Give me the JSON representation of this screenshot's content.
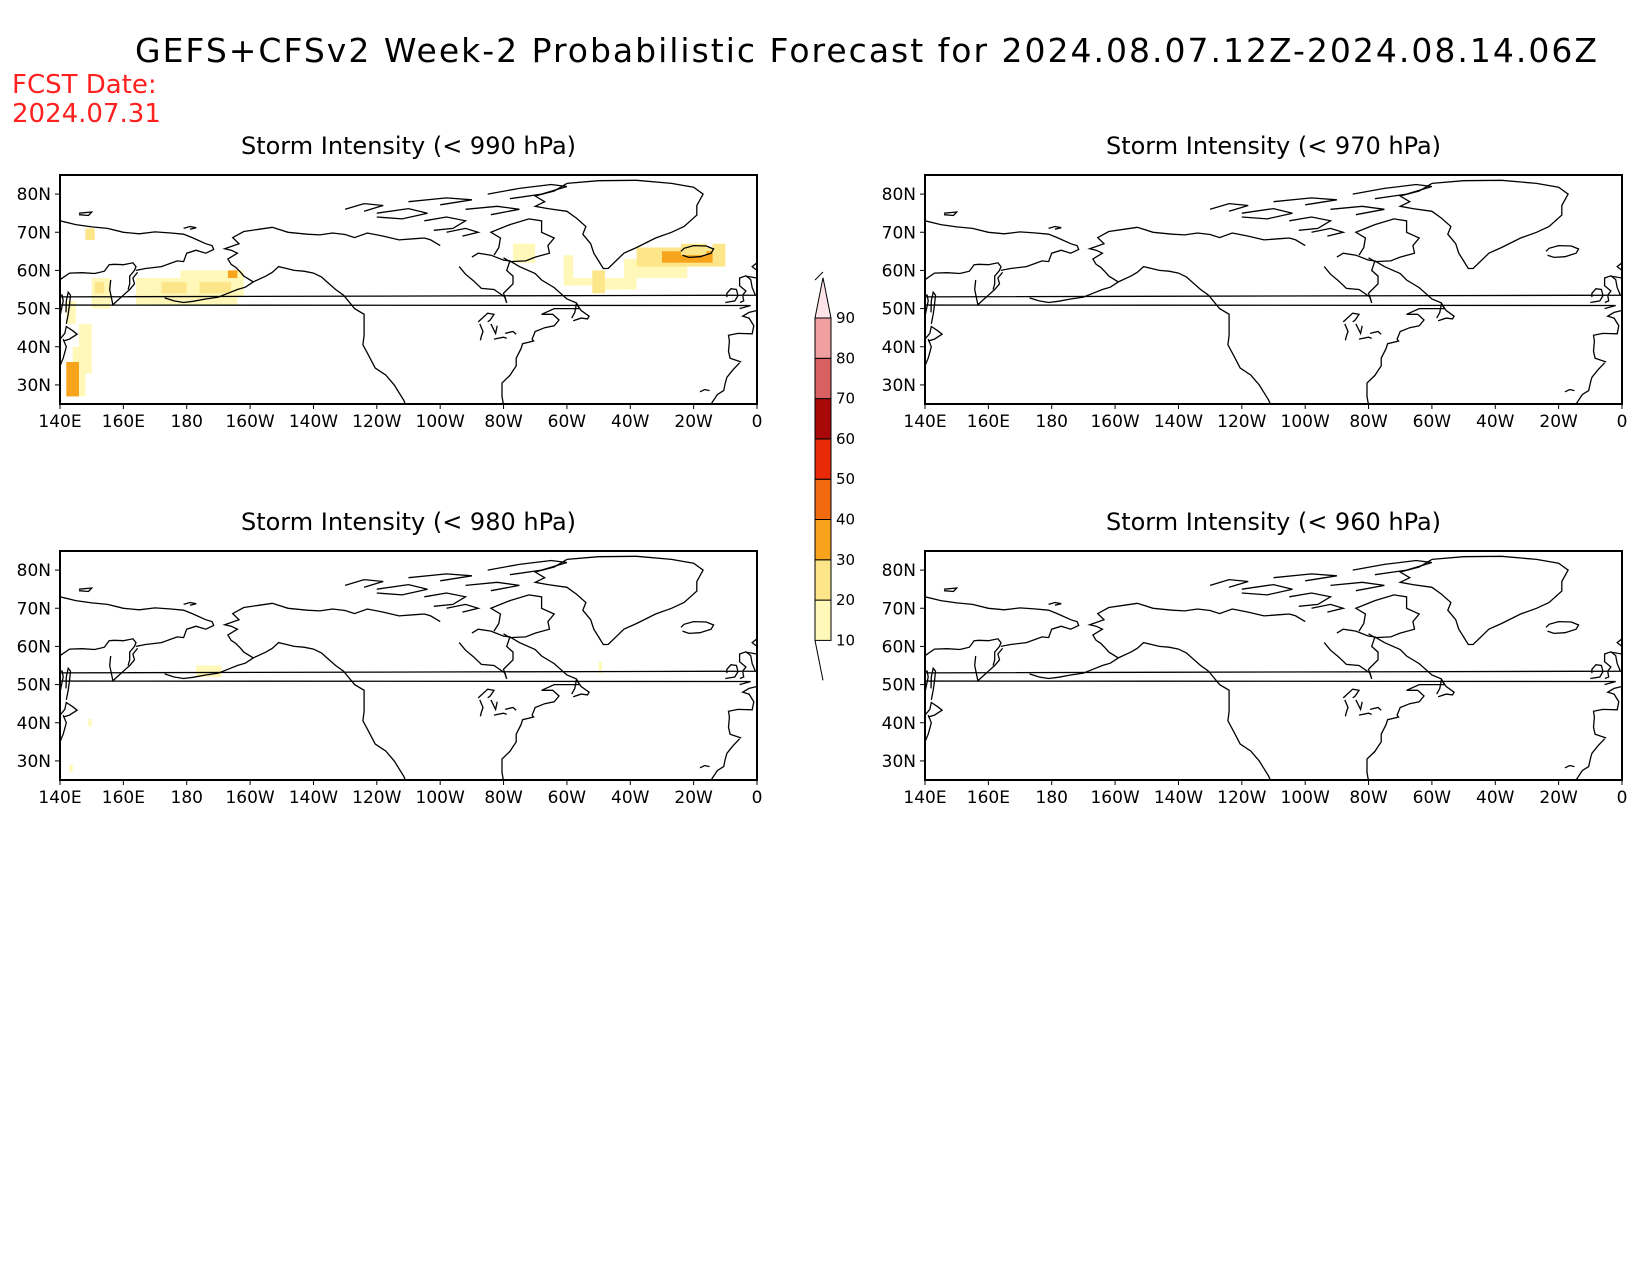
{
  "title": "GEFS+CFSv2 Week-2 Probabilistic Forecast for 2024.08.07.12Z-2024.08.14.06Z",
  "fcst_label": "FCST Date:",
  "fcst_date": "2024.07.31",
  "colors": {
    "fcst_text": "#ff2020",
    "frame": "#000000",
    "coast": "#000000"
  },
  "lon_labels": [
    "140E",
    "160E",
    "180",
    "160W",
    "140W",
    "120W",
    "100W",
    "80W",
    "60W",
    "40W",
    "20W",
    "0"
  ],
  "lat_labels": [
    "30N",
    "40N",
    "50N",
    "60N",
    "70N",
    "80N"
  ],
  "colorbar": {
    "levels": [
      "10",
      "20",
      "30",
      "40",
      "50",
      "60",
      "70",
      "80",
      "90"
    ],
    "colors": [
      "#fff8b8",
      "#fde68a",
      "#f7a31c",
      "#f26a10",
      "#e82a08",
      "#a80808",
      "#d86060",
      "#f0a0a0",
      "#fde4e8"
    ]
  },
  "panels": [
    {
      "title": "Storm Intensity (< 990 hPa)",
      "cells": [
        {
          "lon0": 144,
          "lon1": 148,
          "lat0": 27,
          "lat1": 40,
          "level": 1
        },
        {
          "lon0": 142,
          "lon1": 146,
          "lat0": 27,
          "lat1": 36,
          "level": 3
        },
        {
          "lon0": 146,
          "lon1": 150,
          "lat0": 33,
          "lat1": 46,
          "level": 1
        },
        {
          "lon0": 142,
          "lon1": 145,
          "lat0": 46,
          "lat1": 52,
          "level": 1
        },
        {
          "lon0": 150,
          "lon1": 156,
          "lat0": 50,
          "lat1": 58,
          "level": 1
        },
        {
          "lon0": 151,
          "lon1": 154,
          "lat0": 54,
          "lat1": 57,
          "level": 2
        },
        {
          "lon0": 148,
          "lon1": 151,
          "lat0": 68,
          "lat1": 71,
          "level": 2
        },
        {
          "lon0": 164,
          "lon1": 196,
          "lat0": 51,
          "lat1": 58,
          "level": 1
        },
        {
          "lon0": 178,
          "lon1": 198,
          "lat0": 53,
          "lat1": 60,
          "level": 1
        },
        {
          "lon0": 172,
          "lon1": 180,
          "lat0": 54,
          "lat1": 57,
          "level": 2
        },
        {
          "lon0": 184,
          "lon1": 194,
          "lat0": 54,
          "lat1": 57,
          "level": 2
        },
        {
          "lon0": 193,
          "lon1": 196,
          "lat0": 58,
          "lat1": 60,
          "level": 3
        },
        {
          "lon0": 283,
          "lon1": 290,
          "lat0": 62,
          "lat1": 67,
          "level": 1
        },
        {
          "lon0": 299,
          "lon1": 302,
          "lat0": 56,
          "lat1": 64,
          "level": 1
        },
        {
          "lon0": 302,
          "lon1": 314,
          "lat0": 56,
          "lat1": 58,
          "level": 1
        },
        {
          "lon0": 308,
          "lon1": 312,
          "lat0": 54,
          "lat1": 60,
          "level": 2
        },
        {
          "lon0": 312,
          "lon1": 322,
          "lat0": 55,
          "lat1": 58,
          "level": 1
        },
        {
          "lon0": 318,
          "lon1": 338,
          "lat0": 58,
          "lat1": 63,
          "level": 1
        },
        {
          "lon0": 322,
          "lon1": 350,
          "lat0": 61,
          "lat1": 66,
          "level": 2
        },
        {
          "lon0": 330,
          "lon1": 348,
          "lat0": 62,
          "lat1": 65,
          "level": 3
        },
        {
          "lon0": 336,
          "lon1": 344,
          "lat0": 64,
          "lat1": 67,
          "level": 2
        },
        {
          "lon0": 346,
          "lon1": 350,
          "lat0": 62,
          "lat1": 67,
          "level": 2
        }
      ]
    },
    {
      "title": "Storm Intensity (< 970 hPa)",
      "cells": []
    },
    {
      "title": "Storm Intensity (< 980 hPa)",
      "cells": [
        {
          "lon0": 183,
          "lon1": 191,
          "lat0": 52,
          "lat1": 55,
          "level": 1
        },
        {
          "lon0": 149,
          "lon1": 150,
          "lat0": 39,
          "lat1": 41,
          "level": 1
        },
        {
          "lon0": 143,
          "lon1": 144,
          "lat0": 27,
          "lat1": 29,
          "level": 1
        },
        {
          "lon0": 310,
          "lon1": 311,
          "lat0": 53,
          "lat1": 56,
          "level": 1
        }
      ]
    },
    {
      "title": "Storm Intensity (< 960 hPa)",
      "cells": []
    }
  ]
}
